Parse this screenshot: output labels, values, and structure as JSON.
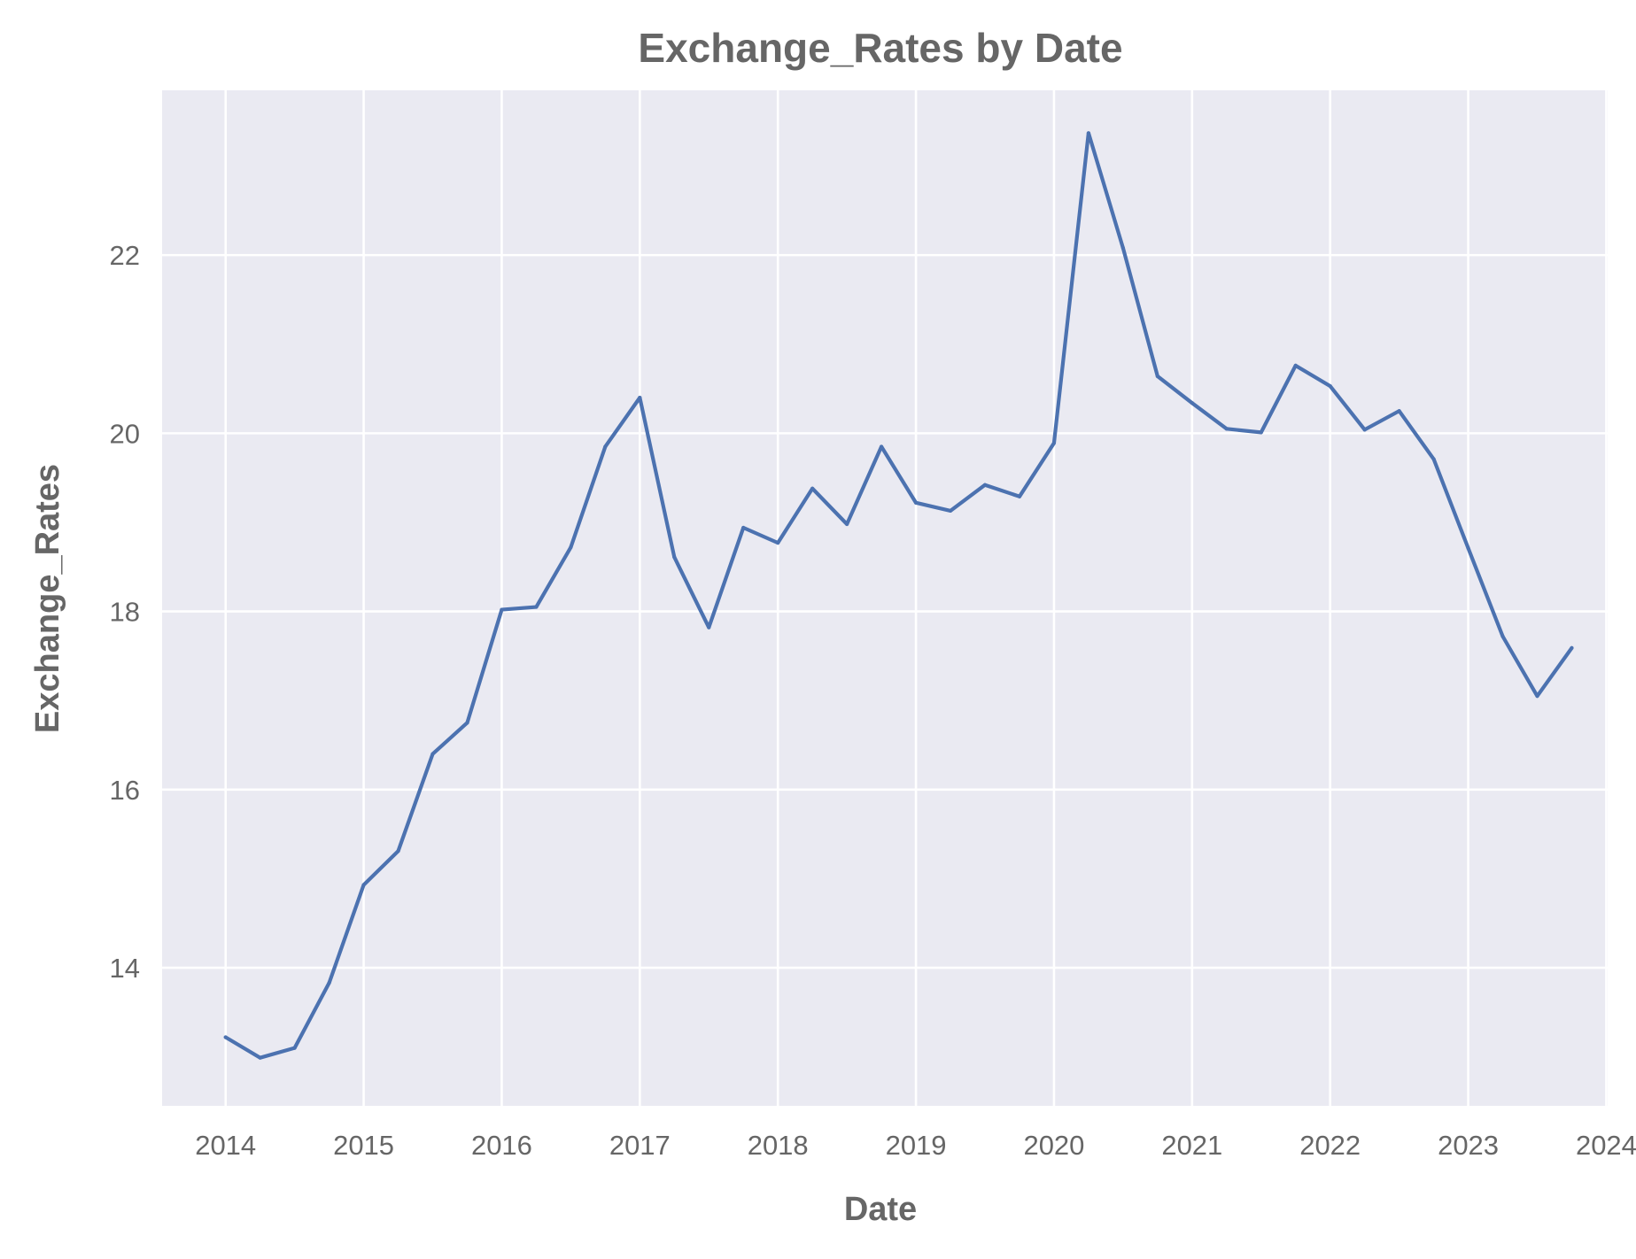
{
  "chart_data": {
    "type": "line",
    "title": "Exchange_Rates by Date",
    "xlabel": "Date",
    "ylabel": "Exchange_Rates",
    "grid": true,
    "xlim": [
      2013.54,
      2024.01
    ],
    "ylim": [
      12.45,
      23.85
    ],
    "xticks": [
      "2014",
      "2015",
      "2016",
      "2017",
      "2018",
      "2019",
      "2020",
      "2021",
      "2022",
      "2023",
      "2024"
    ],
    "yticks": [
      "14",
      "16",
      "18",
      "20",
      "22"
    ],
    "colors": {
      "background": "#eaeaf2",
      "grid": "#ffffff",
      "line": "#4c72b0",
      "text": "#666666"
    },
    "series": [
      {
        "x": [
          "2014-01",
          "2014-04",
          "2014-07",
          "2014-10",
          "2015-01",
          "2015-04",
          "2015-07",
          "2015-10",
          "2016-01",
          "2016-04",
          "2016-07",
          "2016-10",
          "2017-01",
          "2017-04",
          "2017-07",
          "2017-10",
          "2018-01",
          "2018-04",
          "2018-07",
          "2018-10",
          "2019-01",
          "2019-04",
          "2019-07",
          "2019-10",
          "2020-01",
          "2020-04",
          "2020-07",
          "2020-10",
          "2021-01",
          "2021-04",
          "2021-07",
          "2021-10",
          "2022-01",
          "2022-04",
          "2022-07",
          "2022-10",
          "2023-01",
          "2023-04",
          "2023-07",
          "2023-10"
        ],
        "values": [
          13.22,
          12.99,
          13.1,
          13.83,
          14.93,
          15.31,
          16.4,
          16.75,
          18.02,
          18.05,
          18.72,
          19.85,
          20.4,
          18.61,
          17.82,
          18.94,
          18.77,
          19.38,
          18.98,
          19.85,
          19.22,
          19.13,
          19.42,
          19.29,
          19.89,
          23.37,
          22.08,
          20.64,
          20.34,
          20.05,
          20.01,
          20.76,
          20.53,
          20.04,
          20.25,
          19.71,
          18.71,
          17.72,
          17.05,
          17.59
        ]
      }
    ]
  }
}
